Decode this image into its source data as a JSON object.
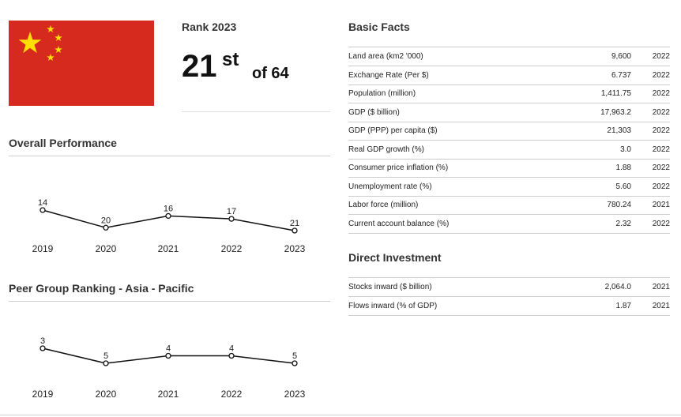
{
  "flag": {
    "colors": {
      "red": "#d72a1f",
      "yellow": "#ffde00"
    },
    "icon": "china-flag"
  },
  "rank": {
    "title": "Rank 2023",
    "value": "21",
    "suffix": "st",
    "of_text": "of 64"
  },
  "overall": {
    "title": "Overall Performance"
  },
  "peer": {
    "title": "Peer Group Ranking - Asia - Pacific"
  },
  "basic_facts": {
    "title": "Basic Facts",
    "rows": [
      {
        "label": "Land area (km2 '000)",
        "value": "9,600",
        "year": "2022"
      },
      {
        "label": "Exchange Rate (Per $)",
        "value": "6.737",
        "year": "2022"
      },
      {
        "label": "Population (million)",
        "value": "1,411.75",
        "year": "2022"
      },
      {
        "label": "GDP ($ billion)",
        "value": "17,963.2",
        "year": "2022"
      },
      {
        "label": "GDP (PPP) per capita ($)",
        "value": "21,303",
        "year": "2022"
      },
      {
        "label": "Real GDP growth (%)",
        "value": "3.0",
        "year": "2022"
      },
      {
        "label": "Consumer price inflation (%)",
        "value": "1.88",
        "year": "2022"
      },
      {
        "label": "Unemployment rate (%)",
        "value": "5.60",
        "year": "2022"
      },
      {
        "label": "Labor force (million)",
        "value": "780.24",
        "year": "2021"
      },
      {
        "label": "Current account balance (%)",
        "value": "2.32",
        "year": "2022"
      }
    ]
  },
  "direct_investment": {
    "title": "Direct Investment",
    "rows": [
      {
        "label": "Stocks inward ($ billion)",
        "value": "2,064.0",
        "year": "2021"
      },
      {
        "label": "Flows inward (% of GDP)",
        "value": "1.87",
        "year": "2021"
      }
    ]
  },
  "chart_data": [
    {
      "type": "line",
      "title": "Overall Performance",
      "categories": [
        "2019",
        "2020",
        "2021",
        "2022",
        "2023"
      ],
      "values": [
        14,
        20,
        16,
        17,
        21
      ],
      "inverted_y": true,
      "grid": false
    },
    {
      "type": "line",
      "title": "Peer Group Ranking - Asia - Pacific",
      "categories": [
        "2019",
        "2020",
        "2021",
        "2022",
        "2023"
      ],
      "values": [
        3,
        5,
        4,
        4,
        5
      ],
      "inverted_y": true,
      "grid": false
    }
  ]
}
